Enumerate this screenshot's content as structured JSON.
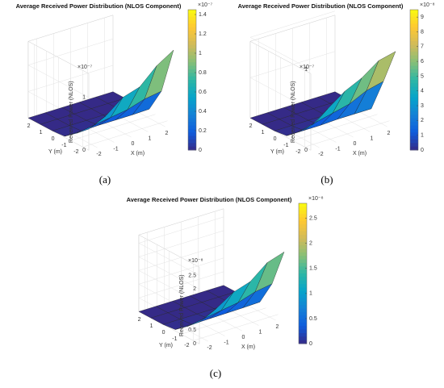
{
  "chart_data": [
    {
      "type": "surface",
      "title": "Average Received Power Distribution (NLOS Component)",
      "xlabel": "X (m)",
      "ylabel": "Y (m)",
      "zlabel": "Received Power (NLOS)",
      "z_exponent": "×10⁻⁷",
      "x": [
        -2.5,
        -1.5,
        -0.5,
        0.5,
        1.5,
        2.5
      ],
      "y": [
        2.5,
        1.5,
        0.5,
        -0.5,
        -1.5,
        -2.5
      ],
      "z": [
        [
          0,
          0,
          0,
          0,
          0,
          0
        ],
        [
          0,
          0,
          0,
          0,
          0,
          0
        ],
        [
          0,
          0,
          0,
          0,
          0,
          0
        ],
        [
          0.02,
          0.02,
          0.03,
          0.03,
          0.03,
          0.04
        ],
        [
          0.2,
          0.25,
          0.3,
          0.35,
          0.45,
          0.5
        ],
        [
          0.4,
          0.55,
          0.8,
          0.9,
          1.2,
          1.4
        ]
      ],
      "xticks": [
        -2,
        -1,
        0,
        1,
        2
      ],
      "yticks": [
        2,
        1,
        0,
        -1,
        -2
      ],
      "zlim": [
        0,
        1.45
      ],
      "zticks": [
        0,
        0.5,
        1
      ],
      "clim": [
        0,
        1.45
      ],
      "cticks": [
        0,
        0.2,
        0.4,
        0.6,
        0.8,
        1,
        1.2,
        1.4
      ],
      "c_exponent": "×10⁻⁷",
      "caption": "(a)"
    },
    {
      "type": "surface",
      "title": "Average Received Power Distribution (NLOS Component)",
      "xlabel": "X (m)",
      "ylabel": "Y (m)",
      "zlabel": "Received Power (NLOS)",
      "z_exponent": "×10⁻⁷",
      "x": [
        -2.5,
        -1.5,
        -0.5,
        0.5,
        1.5,
        2.5
      ],
      "y": [
        2.5,
        1.5,
        0.5,
        -0.5,
        -1.5,
        -2.5
      ],
      "z": [
        [
          0,
          0,
          0,
          0,
          0,
          0
        ],
        [
          0,
          0,
          0,
          0,
          0,
          0
        ],
        [
          0,
          0,
          0,
          0,
          0,
          0
        ],
        [
          0.02,
          0.02,
          0.02,
          0.03,
          0.03,
          0.03
        ],
        [
          0.15,
          0.2,
          0.25,
          0.3,
          0.4,
          0.45
        ],
        [
          0.3,
          0.45,
          0.6,
          0.7,
          0.85,
          0.9
        ]
      ],
      "xticks": [
        -2,
        -1,
        0,
        1,
        2
      ],
      "yticks": [
        2,
        1,
        0,
        -1,
        -2
      ],
      "zlim": [
        0,
        0.95
      ],
      "zticks": [
        0,
        0.5,
        1
      ],
      "clim": [
        0,
        9.5
      ],
      "cticks": [
        0,
        1,
        2,
        3,
        4,
        5,
        6,
        7,
        8,
        9
      ],
      "c_exponent": "×10⁻⁸",
      "caption": "(b)"
    },
    {
      "type": "surface",
      "title": "Average Received Power Distribution (NLOS Component)",
      "xlabel": "X (m)",
      "ylabel": "Y (m)",
      "zlabel": "Received Power (NLOS)",
      "z_exponent": "×10⁻⁸",
      "x": [
        -2.5,
        -1.5,
        -0.5,
        0.5,
        1.5,
        2.5
      ],
      "y": [
        2.5,
        1.5,
        0.5,
        -0.5,
        -1.5,
        -2.5
      ],
      "z": [
        [
          0,
          0,
          0,
          0,
          0,
          0
        ],
        [
          0,
          0,
          0,
          0,
          0,
          0
        ],
        [
          0,
          0,
          0,
          0,
          0,
          0
        ],
        [
          0.05,
          0.05,
          0.06,
          0.07,
          0.08,
          0.1
        ],
        [
          0.4,
          0.5,
          0.6,
          0.7,
          0.9,
          1
        ],
        [
          0.8,
          1.1,
          1.5,
          1.7,
          2.2,
          2.4
        ]
      ],
      "xticks": [
        -2,
        -1,
        0,
        1,
        2
      ],
      "yticks": [
        2,
        1,
        0,
        -1,
        -2
      ],
      "zlim": [
        0,
        2.8
      ],
      "zticks": [
        0,
        0.5,
        1,
        1.5,
        2,
        2.5
      ],
      "clim": [
        0,
        2.8
      ],
      "cticks": [
        0,
        0.5,
        1,
        1.5,
        2,
        2.5
      ],
      "c_exponent": "×10⁻⁸",
      "caption": "(c)"
    }
  ]
}
